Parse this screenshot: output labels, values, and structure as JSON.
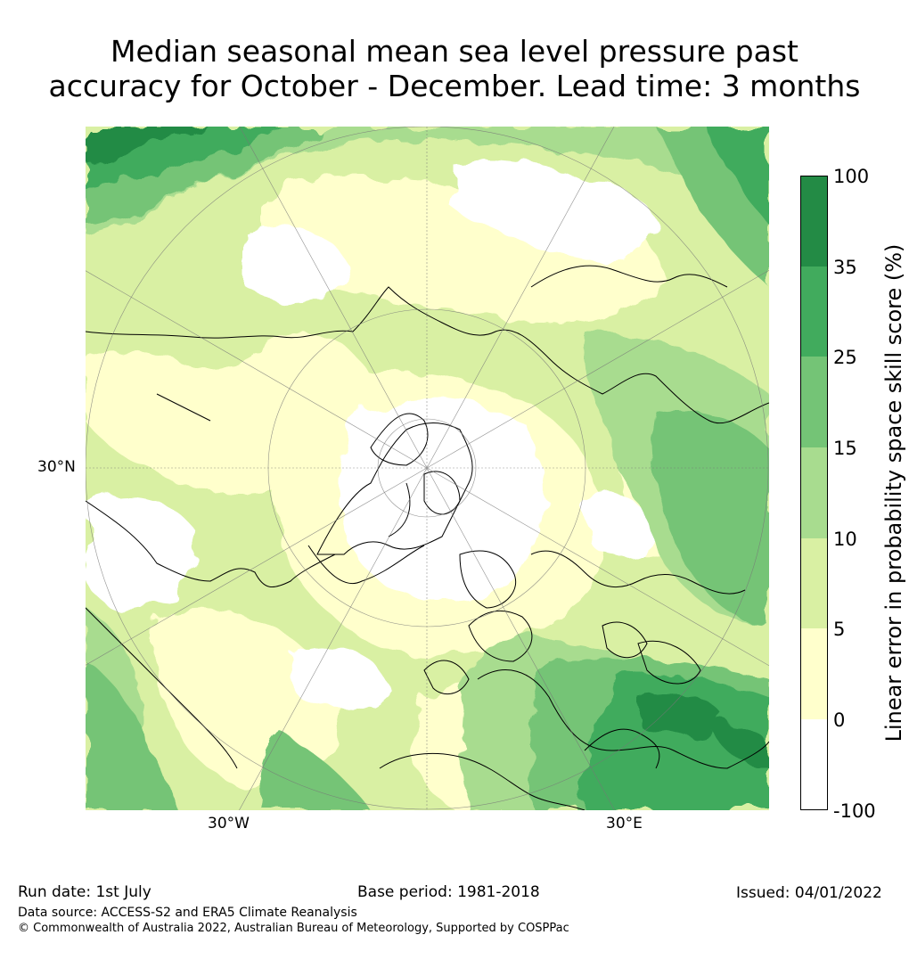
{
  "title": {
    "line1": "Median seasonal mean sea level pressure past",
    "line2": "accuracy for October - December. Lead time: 3 months"
  },
  "map": {
    "projection": "north polar stereographic",
    "lat_label": "30°N",
    "lon_labels": [
      "30°W",
      "30°E"
    ]
  },
  "colorbar": {
    "title": "Linear error in probability space skill score (%)",
    "ticks": [
      "100",
      "35",
      "25",
      "15",
      "10",
      "5",
      "0",
      "-100"
    ],
    "bins": [
      {
        "range": "35 to 100",
        "color": "#238b45"
      },
      {
        "range": "25 to 35",
        "color": "#41ab5d"
      },
      {
        "range": "15 to 25",
        "color": "#74c476"
      },
      {
        "range": "10 to 15",
        "color": "#a8dc8f"
      },
      {
        "range": "5 to 10",
        "color": "#d9f0a3"
      },
      {
        "range": "0 to 5",
        "color": "#ffffcc"
      },
      {
        "range": "-100 to 0",
        "color": "#ffffff"
      }
    ]
  },
  "footer": {
    "run_date": "Run date: 1st July",
    "base_period": "Base period: 1981-2018",
    "issued": "Issued: 04/01/2022",
    "source": "Data source: ACCESS-S2 and ERA5 Climate Reanalysis",
    "copyright": "© Commonwealth of Australia 2022, Australian Bureau of Meteorology, Supported by COSPPac"
  }
}
